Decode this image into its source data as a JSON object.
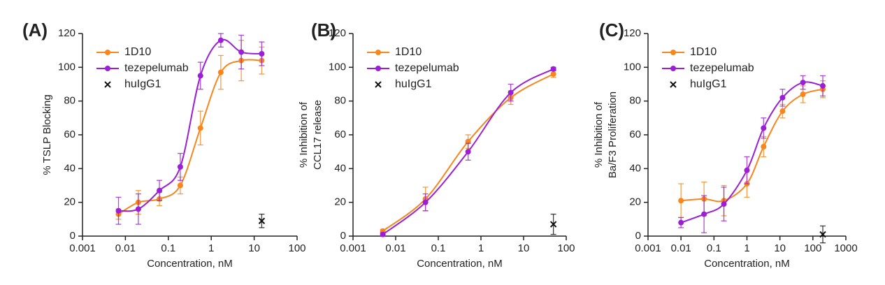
{
  "chart_data": [
    {
      "type": "scatter",
      "panel": "(A)",
      "x_label": "Concentration, nM",
      "y_label": [
        "% TSLP Blocking"
      ],
      "log_x": true,
      "xlim": [
        0.001,
        100
      ],
      "xticks": [
        0.001,
        0.01,
        0.1,
        1,
        10,
        100
      ],
      "ylim": [
        0,
        120
      ],
      "yticks": [
        0,
        20,
        40,
        60,
        80,
        100,
        120
      ],
      "series": [
        {
          "name": "1D10",
          "color": "#f7861c",
          "marker": "circle",
          "line": true,
          "x": [
            0.0069,
            0.02,
            0.062,
            0.19,
            0.56,
            1.67,
            5,
            15
          ],
          "values": [
            13,
            20,
            22,
            30,
            64,
            97,
            104,
            104
          ],
          "errors": [
            3,
            7,
            4,
            5,
            10,
            10,
            12,
            8
          ]
        },
        {
          "name": "tezepelumab",
          "color": "#9b1fd6",
          "marker": "circle",
          "line": true,
          "x": [
            0.0069,
            0.02,
            0.062,
            0.19,
            0.56,
            1.67,
            5,
            15
          ],
          "values": [
            15,
            16,
            27,
            41,
            95,
            116,
            109,
            108
          ],
          "errors": [
            8,
            9,
            6,
            8,
            8,
            4,
            10,
            7
          ]
        },
        {
          "name": "huIgG1",
          "color": "#111111",
          "marker": "x",
          "line": false,
          "x": [
            15
          ],
          "values": [
            9
          ],
          "errors": [
            4
          ]
        }
      ]
    },
    {
      "type": "scatter",
      "panel": "(B)",
      "x_label": "Concentration, nM",
      "y_label": [
        "% Inhibition of",
        "CCL17 release"
      ],
      "log_x": true,
      "xlim": [
        0.001,
        100
      ],
      "xticks": [
        0.001,
        0.01,
        0.1,
        1,
        10,
        100
      ],
      "ylim": [
        0,
        120
      ],
      "yticks": [
        0,
        20,
        40,
        60,
        80,
        100,
        120
      ],
      "series": [
        {
          "name": "1D10",
          "color": "#f7861c",
          "marker": "circle",
          "line": true,
          "x": [
            0.005,
            0.05,
            0.5,
            5,
            50
          ],
          "values": [
            3,
            22,
            56,
            82,
            96
          ],
          "errors": [
            1,
            7,
            4,
            4,
            2
          ]
        },
        {
          "name": "tezepelumab",
          "color": "#9b1fd6",
          "marker": "circle",
          "line": true,
          "x": [
            0.005,
            0.05,
            0.5,
            5,
            50
          ],
          "values": [
            1,
            20,
            50,
            85,
            99
          ],
          "errors": [
            1,
            5,
            5,
            5,
            1
          ]
        },
        {
          "name": "huIgG1",
          "color": "#111111",
          "marker": "x",
          "line": false,
          "x": [
            50
          ],
          "values": [
            7
          ],
          "errors": [
            6
          ]
        }
      ]
    },
    {
      "type": "scatter",
      "panel": "(C)",
      "x_label": "Concentration, nM",
      "y_label": [
        "% Inhibition of",
        "Ba/F3 Proliferation"
      ],
      "log_x": true,
      "xlim": [
        0.001,
        1000
      ],
      "xticks": [
        0.001,
        0.01,
        0.1,
        1,
        10,
        100,
        1000
      ],
      "ylim": [
        0,
        120
      ],
      "yticks": [
        0,
        20,
        40,
        60,
        80,
        100,
        120
      ],
      "series": [
        {
          "name": "1D10",
          "color": "#f7861c",
          "marker": "circle",
          "line": true,
          "x": [
            0.01,
            0.05,
            0.2,
            1,
            3.2,
            12,
            50,
            200
          ],
          "values": [
            21,
            22,
            21,
            31,
            53,
            74,
            84,
            87
          ],
          "errors": [
            10,
            10,
            9,
            8,
            6,
            4,
            5,
            5
          ]
        },
        {
          "name": "tezepelumab",
          "color": "#9b1fd6",
          "marker": "circle",
          "line": true,
          "x": [
            0.01,
            0.05,
            0.2,
            1,
            3.2,
            12,
            50,
            200
          ],
          "values": [
            8,
            13,
            19,
            39,
            64,
            82,
            91,
            89
          ],
          "errors": [
            3,
            11,
            10,
            8,
            6,
            5,
            4,
            6
          ]
        },
        {
          "name": "huIgG1",
          "color": "#111111",
          "marker": "x",
          "line": false,
          "x": [
            200
          ],
          "values": [
            1
          ],
          "errors": [
            5
          ]
        }
      ]
    }
  ]
}
